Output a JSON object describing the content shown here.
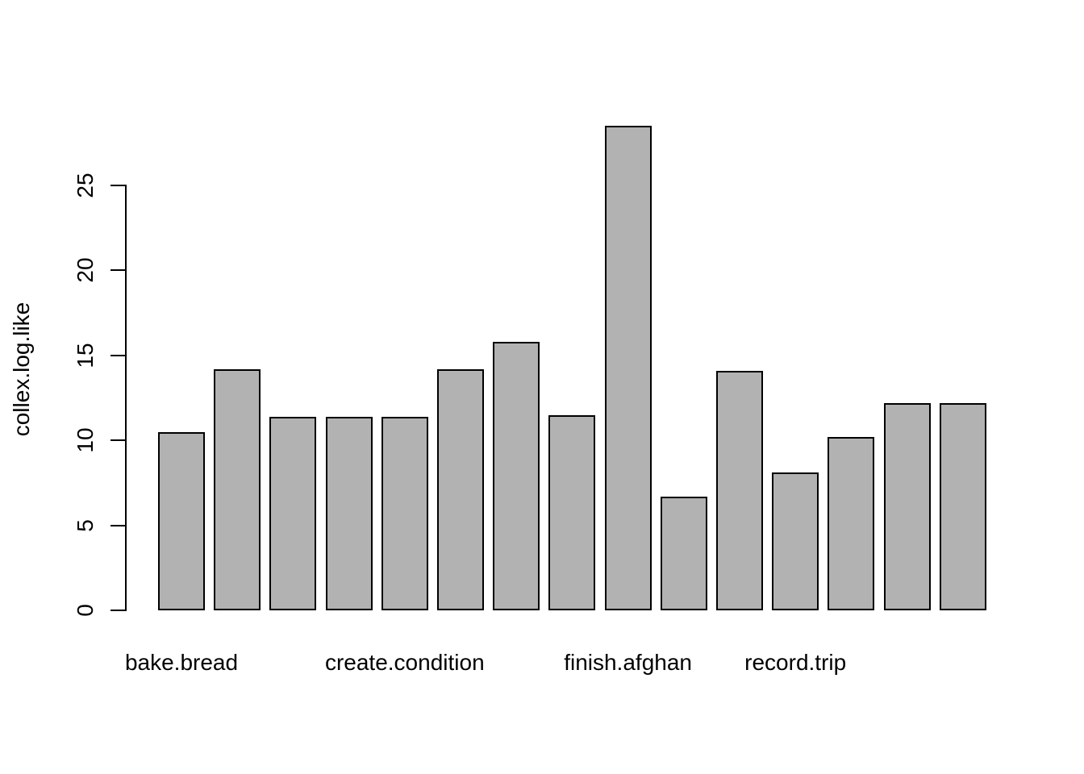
{
  "chart_data": {
    "type": "bar",
    "title": "",
    "xlabel": "",
    "ylabel": "collex.log.like",
    "ylim": [
      0,
      28.5
    ],
    "yticks": [
      0,
      5,
      10,
      15,
      20,
      25
    ],
    "grid": false,
    "legend_position": "none",
    "bar_fill_color": "#b2b2b2",
    "bar_border_color": "#000000",
    "axis_color": "#000000",
    "background_color": "#ffffff",
    "values": [
      10.5,
      14.2,
      11.4,
      11.4,
      11.4,
      14.2,
      15.8,
      11.5,
      28.5,
      6.7,
      14.1,
      8.1,
      10.2,
      12.2,
      12.2
    ],
    "x_tick_labels": [
      {
        "label": "bake.bread",
        "bar_index": 0
      },
      {
        "label": "create.condition",
        "bar_index": 4
      },
      {
        "label": "finish.afghan",
        "bar_index": 8
      },
      {
        "label": "record.trip",
        "bar_index": 11
      }
    ]
  }
}
